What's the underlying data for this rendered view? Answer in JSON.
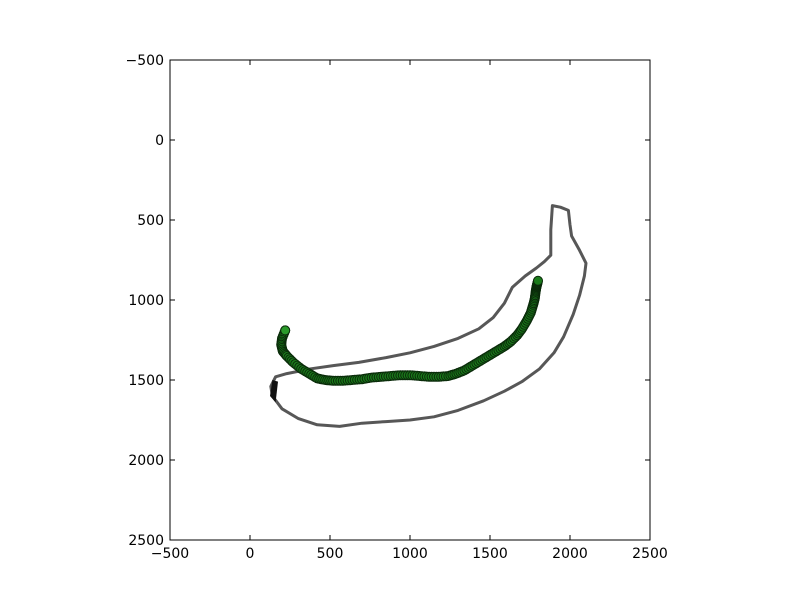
{
  "chart_data": {
    "type": "scatter",
    "title": "",
    "xlabel": "",
    "ylabel": "",
    "xlim": [
      -500,
      2500
    ],
    "ylim": [
      2500,
      -500
    ],
    "y_inverted": true,
    "grid": false,
    "x_ticks": [
      "−500",
      "0",
      "500",
      "1000",
      "1500",
      "2000",
      "2500"
    ],
    "x_tick_values": [
      -500,
      0,
      500,
      1000,
      1500,
      2000,
      2500
    ],
    "y_ticks": [
      "−500",
      "0",
      "500",
      "1000",
      "1500",
      "2000",
      "2500"
    ],
    "y_tick_values": [
      -500,
      0,
      500,
      1000,
      1500,
      2000,
      2500
    ],
    "background_image": "banana-outline-drawing",
    "outline_color": "#3a3a3a",
    "marker_color": "#1a7a1a",
    "marker_edge_color": "#0a2a0a",
    "series": [
      {
        "marker": "circle",
        "x": [
          220,
          200,
          195,
          205,
          230,
          270,
          320,
          370,
          420,
          470,
          520,
          580,
          640,
          700,
          760,
          820,
          880,
          940,
          1000,
          1060,
          1120,
          1180,
          1240,
          1290,
          1340,
          1390,
          1440,
          1490,
          1540,
          1590,
          1630,
          1670,
          1700,
          1730,
          1755,
          1770,
          1780,
          1785,
          1790,
          1795,
          1800
        ],
        "y": [
          1190,
          1240,
          1280,
          1320,
          1350,
          1390,
          1430,
          1460,
          1490,
          1500,
          1505,
          1505,
          1500,
          1495,
          1485,
          1480,
          1475,
          1470,
          1470,
          1475,
          1480,
          1480,
          1475,
          1460,
          1440,
          1410,
          1380,
          1350,
          1320,
          1290,
          1260,
          1220,
          1180,
          1130,
          1080,
          1030,
          990,
          950,
          920,
          900,
          880
        ]
      }
    ]
  }
}
